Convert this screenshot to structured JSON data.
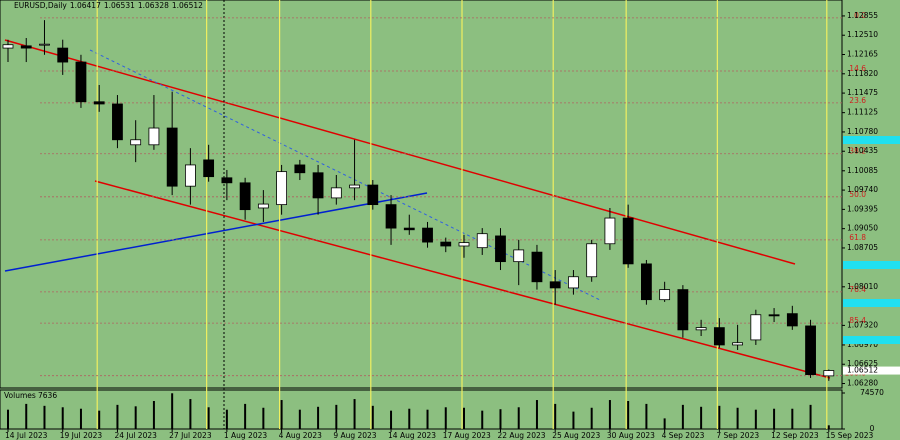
{
  "chart_data": {
    "type": "candlestick",
    "title": "EURUSD,Daily",
    "categories": [
      "14 Jul 2023",
      null,
      null,
      "19 Jul 2023",
      null,
      null,
      "24 Jul 2023",
      null,
      null,
      "27 Jul 2023",
      null,
      null,
      "1 Aug 2023",
      null,
      null,
      "4 Aug 2023",
      null,
      null,
      "9 Aug 2023",
      null,
      null,
      "14 Aug 2023",
      null,
      null,
      "17 Aug 2023",
      null,
      null,
      "22 Aug 2023",
      null,
      null,
      "25 Aug 2023",
      null,
      null,
      "30 Aug 2023",
      null,
      null,
      "4 Sep 2023",
      null,
      null,
      "7 Sep 2023",
      null,
      null,
      "12 Sep 2023",
      null,
      null,
      "15 Sep 2023"
    ],
    "open": [
      1.1228,
      1.1232,
      1.1234,
      1.1228,
      1.1203,
      1.1132,
      1.1128,
      1.1055,
      1.1055,
      1.1085,
      1.0981,
      1.1028,
      1.0996,
      1.0987,
      1.0942,
      1.0948,
      1.1019,
      1.1005,
      1.096,
      1.0978,
      1.0983,
      1.0948,
      1.0906,
      1.0906,
      1.0881,
      1.0874,
      1.0871,
      1.0892,
      1.0846,
      1.0863,
      1.081,
      1.0799,
      1.0819,
      1.0878,
      1.0924,
      1.0842,
      1.0778,
      1.0796,
      1.0724,
      1.0728,
      1.0697,
      1.0706,
      1.0751,
      1.0753,
      1.0731,
      1.06417
    ],
    "high": [
      1.1243,
      1.1246,
      1.1278,
      1.1243,
      1.1216,
      1.1162,
      1.1144,
      1.1099,
      1.1144,
      1.115,
      1.1049,
      1.1055,
      1.101,
      1.0996,
      1.0974,
      1.1019,
      1.1028,
      1.1019,
      1.1001,
      1.1064,
      1.0992,
      1.0965,
      1.093,
      1.0917,
      1.0889,
      1.0894,
      1.0906,
      1.0906,
      1.0885,
      1.0876,
      1.0831,
      1.0831,
      1.0885,
      1.0942,
      1.0948,
      1.0849,
      1.081,
      1.0804,
      1.0742,
      1.0745,
      1.0733,
      1.076,
      1.0763,
      1.0767,
      1.0742,
      1.06531
    ],
    "low": [
      1.1203,
      1.1203,
      1.1216,
      1.118,
      1.1121,
      1.1114,
      1.1049,
      1.1024,
      1.1046,
      1.0965,
      1.0948,
      1.0989,
      1.0956,
      1.0921,
      1.0917,
      1.093,
      1.0992,
      1.093,
      1.0948,
      1.0956,
      1.0939,
      1.0876,
      1.0894,
      1.0871,
      1.0863,
      1.0853,
      1.0858,
      1.0831,
      1.0804,
      1.0796,
      1.0769,
      1.0787,
      1.081,
      1.0867,
      1.0835,
      1.0769,
      1.0774,
      1.071,
      1.0713,
      1.0692,
      1.0688,
      1.0697,
      1.0738,
      1.0724,
      1.0638,
      1.06328
    ],
    "close": [
      1.1234,
      1.1228,
      1.1235,
      1.1203,
      1.1132,
      1.1128,
      1.1064,
      1.1064,
      1.1085,
      1.0981,
      1.1019,
      1.0998,
      1.0987,
      1.0939,
      1.0949,
      1.1007,
      1.1005,
      1.096,
      1.0978,
      1.0983,
      1.0948,
      1.0906,
      1.0903,
      1.0881,
      1.0874,
      1.088,
      1.0896,
      1.0846,
      1.0867,
      1.081,
      1.0799,
      1.0819,
      1.0878,
      1.0924,
      1.0842,
      1.0778,
      1.0796,
      1.0724,
      1.0728,
      1.0697,
      1.0701,
      1.0751,
      1.0749,
      1.0731,
      1.0644,
      1.06512
    ],
    "ylim": [
      1.062,
      1.1314
    ],
    "yticks": [
      1.12855,
      {
        "value": 1.1251,
        "label": "1.12510"
      },
      1.12165,
      {
        "value": 1.1182,
        "label": "1.11820"
      },
      1.11475,
      1.11125,
      {
        "value": 1.1078,
        "label": "1.10780"
      },
      1.10435,
      1.10085,
      {
        "value": 1.0974,
        "label": "1.09740"
      },
      1.09395,
      {
        "value": 1.0905,
        "label": "1.09050"
      },
      1.08705,
      {
        "value": 1.0801,
        "label": "1.08010"
      },
      {
        "value": 1.0732,
        "label": "1.07320"
      },
      {
        "value": 1.0697,
        "label": "1.06970"
      },
      1.06625,
      {
        "value": 1.0628,
        "label": "1.06280"
      }
    ],
    "fib_levels": [
      {
        "value": 1.1282,
        "label": "0.0"
      },
      {
        "value": 1.1187,
        "label": "14.6"
      },
      {
        "value": 1.113,
        "label": "23.6"
      },
      {
        "value": 1.1039,
        "label": "38.2"
      },
      {
        "value": 1.0962,
        "label": "50.0"
      },
      {
        "value": 1.0885,
        "label": "61.8"
      },
      {
        "value": 1.0792,
        "label": "76.4"
      },
      {
        "value": 1.0736,
        "label": "85.4"
      },
      {
        "value": 1.0642,
        "label": "100.0"
      }
    ],
    "volume": {
      "title": "Volumes",
      "ylim": [
        0,
        74570
      ],
      "yticks": [
        0,
        74570
      ],
      "values": [
        40000,
        52000,
        48000,
        45000,
        42000,
        38000,
        50000,
        47000,
        58000,
        74000,
        62000,
        45000,
        40000,
        52000,
        44000,
        60000,
        40000,
        46000,
        50000,
        62000,
        48000,
        38000,
        42000,
        40000,
        45000,
        44000,
        38000,
        41000,
        45000,
        60000,
        52000,
        36000,
        44000,
        60000,
        58000,
        52000,
        22000,
        50000,
        46000,
        48000,
        44000,
        40000,
        42000,
        42000,
        50000,
        7636
      ]
    }
  }
}
